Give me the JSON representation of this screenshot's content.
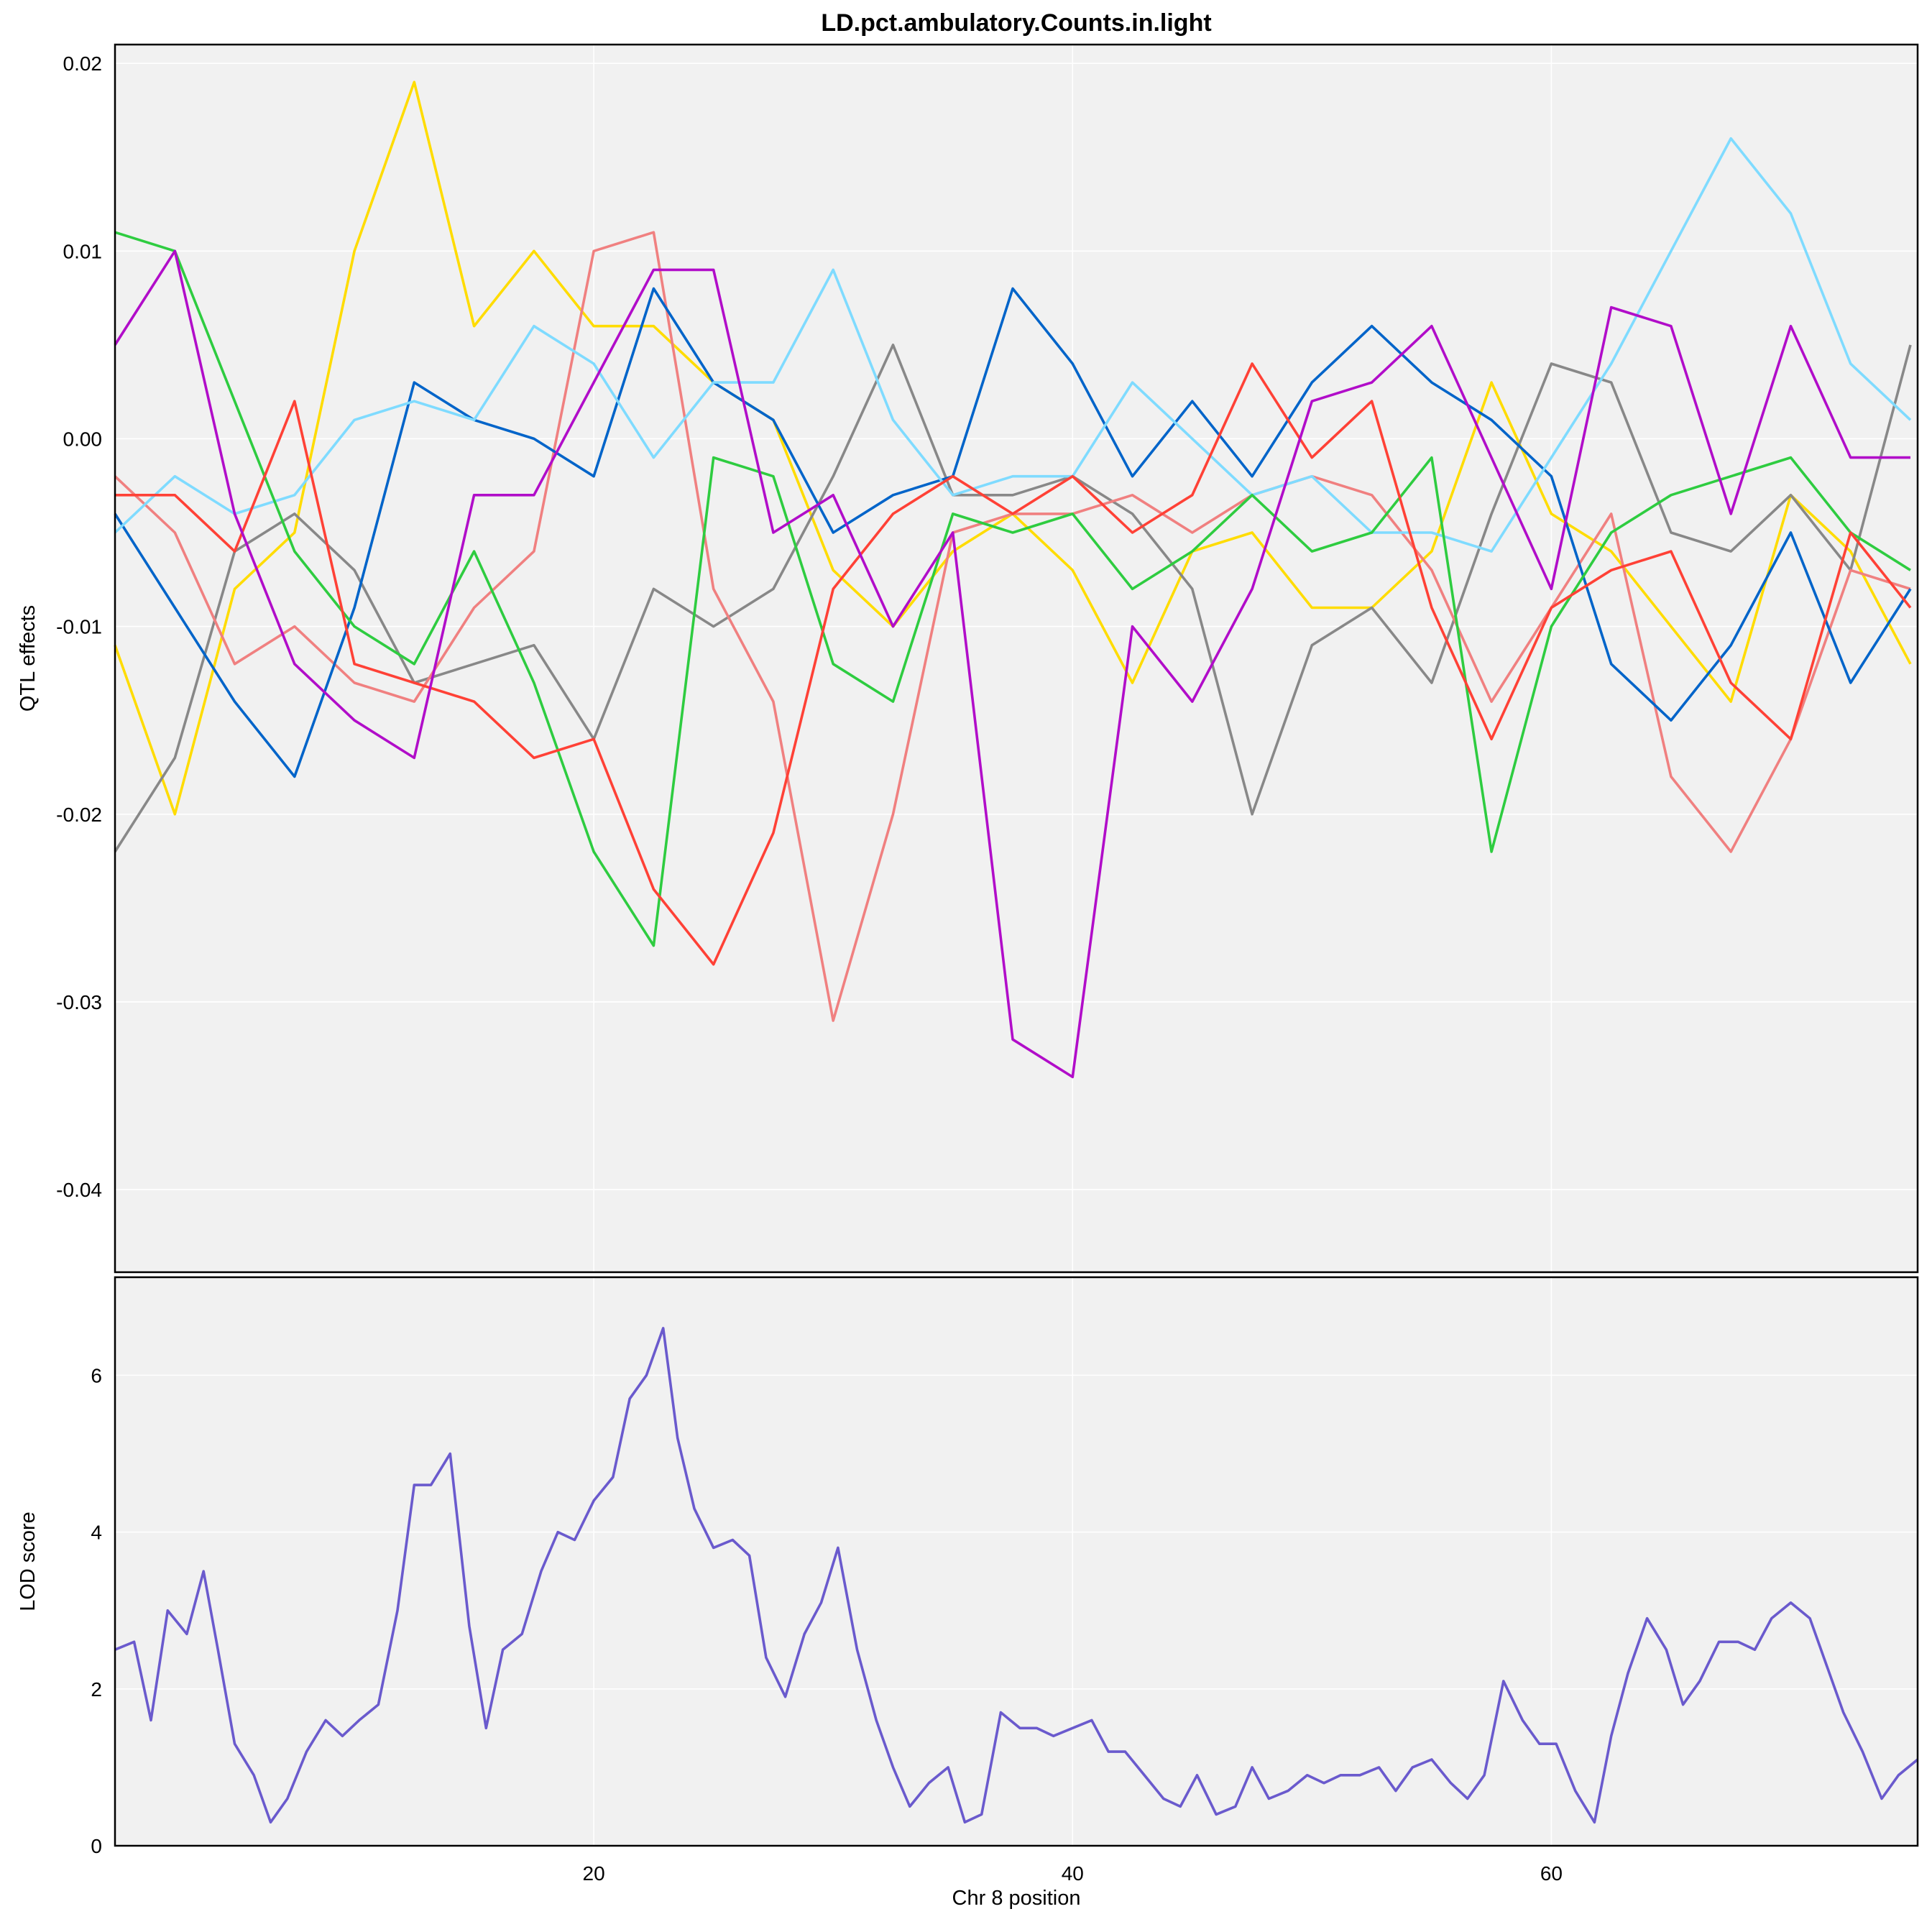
{
  "chart_data": [
    {
      "type": "line",
      "title": "LD.pct.ambulatory.Counts.in.light",
      "xlabel": "",
      "ylabel": "QTL effects",
      "xlim": [
        0,
        75.3
      ],
      "ylim": [
        -0.0444,
        0.021
      ],
      "x_ticks": [
        20,
        40,
        60
      ],
      "y_ticks": [
        -0.04,
        -0.03,
        -0.02,
        -0.01,
        0.0,
        0.01,
        0.02
      ],
      "y_tick_labels": [
        "-0.04",
        "-0.03",
        "-0.02",
        "-0.01",
        "0.00",
        "0.01",
        "0.02"
      ],
      "grid": true,
      "legend": "none",
      "x": [
        0.0,
        2.5,
        5.0,
        7.5,
        10.0,
        12.5,
        15.0,
        17.5,
        20.0,
        22.5,
        25.0,
        27.5,
        30.0,
        32.5,
        35.0,
        37.5,
        40.0,
        42.5,
        45.0,
        47.5,
        50.0,
        52.5,
        55.0,
        57.5,
        60.0,
        62.5,
        65.0,
        67.5,
        70.0,
        72.5,
        75.0
      ],
      "series": [
        {
          "color": "#FFDC00",
          "values": [
            -0.011,
            -0.02,
            -0.008,
            -0.005,
            0.01,
            0.019,
            0.006,
            0.01,
            0.006,
            0.006,
            0.003,
            0.001,
            -0.007,
            -0.01,
            -0.006,
            -0.004,
            -0.007,
            -0.013,
            -0.006,
            -0.005,
            -0.009,
            -0.009,
            -0.006,
            0.003,
            -0.004,
            -0.006,
            -0.01,
            -0.014,
            -0.003,
            -0.006,
            -0.012
          ]
        },
        {
          "color": "#888888",
          "values": [
            -0.022,
            -0.017,
            -0.006,
            -0.004,
            -0.007,
            -0.013,
            -0.012,
            -0.011,
            -0.016,
            -0.008,
            -0.01,
            -0.008,
            -0.002,
            0.005,
            -0.003,
            -0.003,
            -0.002,
            -0.004,
            -0.008,
            -0.02,
            -0.011,
            -0.009,
            -0.013,
            -0.004,
            0.004,
            0.003,
            -0.005,
            -0.006,
            -0.003,
            -0.007,
            0.005
          ]
        },
        {
          "color": "#F08080",
          "values": [
            -0.002,
            -0.005,
            -0.012,
            -0.01,
            -0.013,
            -0.014,
            -0.009,
            -0.006,
            0.01,
            0.011,
            -0.008,
            -0.014,
            -0.031,
            -0.02,
            -0.005,
            -0.004,
            -0.004,
            -0.003,
            -0.005,
            -0.003,
            -0.002,
            -0.003,
            -0.007,
            -0.014,
            -0.009,
            -0.004,
            -0.018,
            -0.022,
            -0.016,
            -0.007,
            -0.008
          ]
        },
        {
          "color": "#0064C9",
          "values": [
            -0.004,
            -0.009,
            -0.014,
            -0.018,
            -0.009,
            0.003,
            0.001,
            0.0,
            -0.002,
            0.008,
            0.003,
            0.001,
            -0.005,
            -0.003,
            -0.002,
            0.008,
            0.004,
            -0.002,
            0.002,
            -0.002,
            0.003,
            0.006,
            0.003,
            0.001,
            -0.002,
            -0.012,
            -0.015,
            -0.011,
            -0.005,
            -0.013,
            -0.008
          ]
        },
        {
          "color": "#7FDBFF",
          "values": [
            -0.005,
            -0.002,
            -0.004,
            -0.003,
            0.001,
            0.002,
            0.001,
            0.006,
            0.004,
            -0.001,
            0.003,
            0.003,
            0.009,
            0.001,
            -0.003,
            -0.002,
            -0.002,
            0.003,
            0.0,
            -0.003,
            -0.002,
            -0.005,
            -0.005,
            -0.006,
            -0.001,
            0.004,
            0.01,
            0.016,
            0.012,
            0.004,
            0.001
          ]
        },
        {
          "color": "#2ECC40",
          "values": [
            0.011,
            0.01,
            0.002,
            -0.006,
            -0.01,
            -0.012,
            -0.006,
            -0.013,
            -0.022,
            -0.027,
            -0.001,
            -0.002,
            -0.012,
            -0.014,
            -0.004,
            -0.005,
            -0.004,
            -0.008,
            -0.006,
            -0.003,
            -0.006,
            -0.005,
            -0.001,
            -0.022,
            -0.01,
            -0.005,
            -0.003,
            -0.002,
            -0.001,
            -0.005,
            -0.007
          ]
        },
        {
          "color": "#FF4136",
          "values": [
            -0.003,
            -0.003,
            -0.006,
            0.002,
            -0.012,
            -0.013,
            -0.014,
            -0.017,
            -0.016,
            -0.024,
            -0.028,
            -0.021,
            -0.008,
            -0.004,
            -0.002,
            -0.004,
            -0.002,
            -0.005,
            -0.003,
            0.004,
            -0.001,
            0.002,
            -0.009,
            -0.016,
            -0.009,
            -0.007,
            -0.006,
            -0.013,
            -0.016,
            -0.005,
            -0.009
          ]
        },
        {
          "color": "#B10DC9",
          "values": [
            0.005,
            0.01,
            -0.004,
            -0.012,
            -0.015,
            -0.017,
            -0.003,
            -0.003,
            0.003,
            0.009,
            0.009,
            -0.005,
            -0.003,
            -0.01,
            -0.005,
            -0.032,
            -0.034,
            -0.01,
            -0.014,
            -0.008,
            0.002,
            0.003,
            0.006,
            -0.001,
            -0.008,
            0.007,
            0.006,
            -0.004,
            0.006,
            -0.001,
            -0.001
          ]
        }
      ]
    },
    {
      "type": "line",
      "title": "",
      "xlabel": "Chr 8 position",
      "ylabel": "LOD score",
      "xlim": [
        0,
        75.3
      ],
      "ylim": [
        0,
        7.25
      ],
      "x_ticks": [
        20,
        40,
        60
      ],
      "y_ticks": [
        0,
        2,
        4,
        6
      ],
      "grid": true,
      "legend": "none",
      "series": [
        {
          "color": "#6A5ACD",
          "x": [
            0.0,
            0.8,
            1.5,
            2.2,
            3.0,
            3.7,
            4.3,
            5.0,
            5.8,
            6.5,
            7.2,
            8.0,
            8.8,
            9.5,
            10.2,
            11.0,
            11.8,
            12.5,
            13.2,
            14.0,
            14.8,
            15.5,
            16.2,
            17.0,
            17.8,
            18.5,
            19.2,
            20.0,
            20.8,
            21.5,
            22.2,
            22.9,
            23.5,
            24.2,
            25.0,
            25.8,
            26.5,
            27.2,
            28.0,
            28.8,
            29.5,
            30.2,
            31.0,
            31.8,
            32.5,
            33.2,
            34.0,
            34.8,
            35.5,
            36.2,
            37.0,
            37.8,
            38.5,
            39.2,
            40.0,
            40.8,
            41.5,
            42.2,
            43.0,
            43.8,
            44.5,
            45.2,
            46.0,
            46.8,
            47.5,
            48.2,
            49.0,
            49.8,
            50.5,
            51.2,
            52.0,
            52.8,
            53.5,
            54.2,
            55.0,
            55.8,
            56.5,
            57.2,
            58.0,
            58.8,
            59.5,
            60.2,
            61.0,
            61.8,
            62.5,
            63.2,
            64.0,
            64.8,
            65.5,
            66.2,
            67.0,
            67.8,
            68.5,
            69.2,
            70.0,
            70.8,
            71.5,
            72.2,
            73.0,
            73.8,
            74.5,
            75.3
          ],
          "values": [
            2.5,
            2.6,
            1.6,
            3.0,
            2.7,
            3.5,
            2.5,
            1.3,
            0.9,
            0.3,
            0.6,
            1.2,
            1.6,
            1.4,
            1.6,
            1.8,
            3.0,
            4.6,
            4.6,
            5.0,
            2.8,
            1.5,
            2.5,
            2.7,
            3.5,
            4.0,
            3.9,
            4.4,
            4.7,
            5.7,
            6.0,
            6.6,
            5.2,
            4.3,
            3.8,
            3.9,
            3.7,
            2.4,
            1.9,
            2.7,
            3.1,
            3.8,
            2.5,
            1.6,
            1.0,
            0.5,
            0.8,
            1.0,
            0.3,
            0.4,
            1.7,
            1.5,
            1.5,
            1.4,
            1.5,
            1.6,
            1.2,
            1.2,
            0.9,
            0.6,
            0.5,
            0.9,
            0.4,
            0.5,
            1.0,
            0.6,
            0.7,
            0.9,
            0.8,
            0.9,
            0.9,
            1.0,
            0.7,
            1.0,
            1.1,
            0.8,
            0.6,
            0.9,
            2.1,
            1.6,
            1.3,
            1.3,
            0.7,
            0.3,
            1.4,
            2.2,
            2.9,
            2.5,
            1.8,
            2.1,
            2.6,
            2.6,
            2.5,
            2.9,
            3.1,
            2.9,
            2.3,
            1.7,
            1.2,
            0.6,
            0.9,
            1.1
          ]
        }
      ]
    }
  ]
}
